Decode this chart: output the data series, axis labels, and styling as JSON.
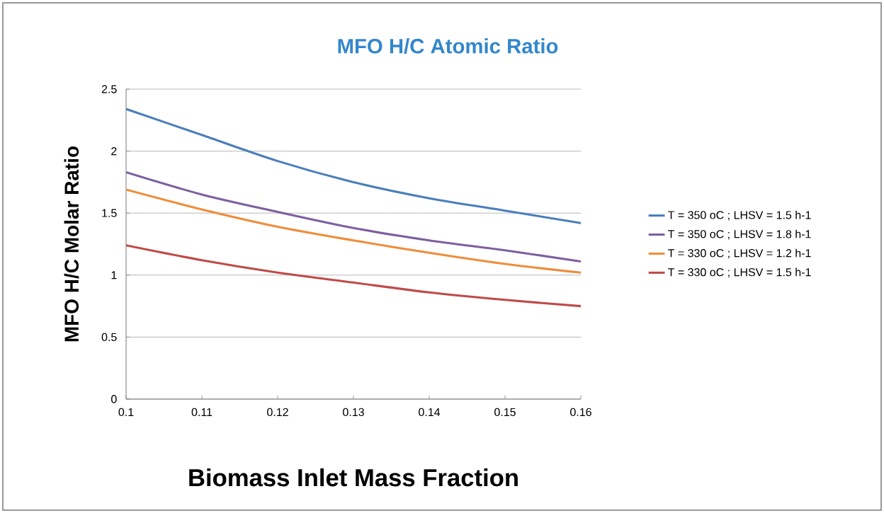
{
  "chart_data": {
    "type": "line",
    "title": "MFO   H/C Atomic Ratio",
    "xlabel": "Biomass Inlet Mass Fraction",
    "ylabel": "MFO H/C Molar Ratio",
    "x": [
      0.1,
      0.11,
      0.12,
      0.13,
      0.14,
      0.15,
      0.16
    ],
    "series": [
      {
        "name": "T = 350 oC ; LHSV = 1.5 h-1",
        "color": "#4a7ebb",
        "values": [
          2.34,
          2.13,
          1.92,
          1.75,
          1.62,
          1.52,
          1.42
        ]
      },
      {
        "name": "T = 350 oC ; LHSV = 1.8 h-1",
        "color": "#7d5fa0",
        "values": [
          1.83,
          1.65,
          1.51,
          1.38,
          1.28,
          1.2,
          1.11
        ]
      },
      {
        "name": "T = 330 oC ; LHSV = 1.2 h-1",
        "color": "#f08c3a",
        "values": [
          1.69,
          1.53,
          1.39,
          1.28,
          1.18,
          1.09,
          1.02
        ]
      },
      {
        "name": "T = 330 oC ; LHSV = 1.5 h-1",
        "color": "#be4b48",
        "values": [
          1.24,
          1.12,
          1.02,
          0.94,
          0.86,
          0.8,
          0.75
        ]
      }
    ],
    "xlim": [
      0.1,
      0.16
    ],
    "ylim": [
      0,
      2.5
    ],
    "xticks": [
      0.1,
      0.11,
      0.12,
      0.13,
      0.14,
      0.15,
      0.16
    ],
    "yticks": [
      0,
      0.5,
      1,
      1.5,
      2,
      2.5
    ],
    "grid": "y",
    "legend": "right"
  }
}
